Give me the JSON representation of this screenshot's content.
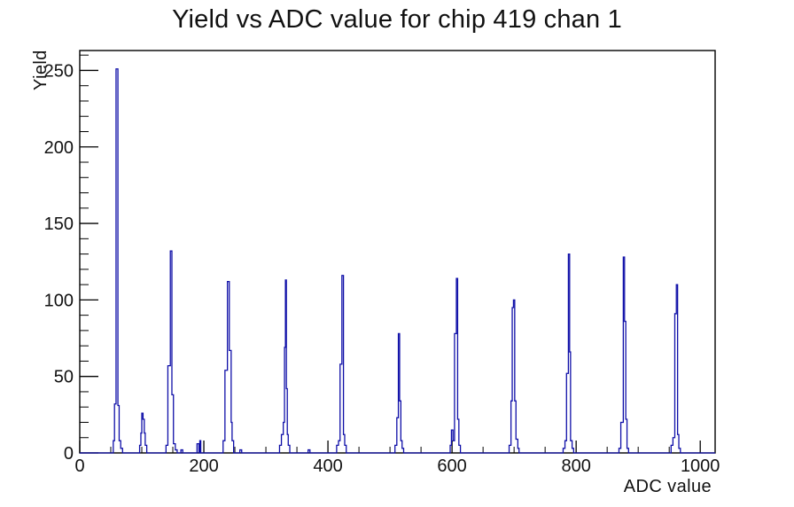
{
  "window": {
    "background_color": "#ffffff"
  },
  "chart_data": {
    "type": "bar",
    "subtype": "histogram-step-outline",
    "title": "Yield vs ADC value for chip 419 chan 1",
    "xlabel": "ADC value",
    "ylabel": "Yield",
    "legend": "none",
    "grid": "off",
    "colors": {
      "histogram_line": "#0f0fa8",
      "frame_line": "#000000",
      "text": "#111111",
      "background": "#ffffff"
    },
    "xaxis": {
      "title": "ADC value",
      "range": [
        0,
        1024
      ],
      "major_ticks": [
        0,
        200,
        400,
        600,
        800,
        1000
      ],
      "major_tick_labels": [
        "0",
        "200",
        "400",
        "600",
        "800",
        "1000"
      ],
      "minor_tick_step": 50
    },
    "yaxis": {
      "title": "Yield",
      "range": [
        0,
        263
      ],
      "major_ticks": [
        0,
        50,
        100,
        150,
        200,
        250
      ],
      "major_tick_labels": [
        "0",
        "50",
        "100",
        "150",
        "200",
        "250"
      ],
      "minor_tick_step": 10
    },
    "peaks_summary": [
      {
        "adc": 61,
        "yield": 251
      },
      {
        "adc": 101,
        "yield": 26
      },
      {
        "adc": 147,
        "yield": 132
      },
      {
        "adc": 240,
        "yield": 112
      },
      {
        "adc": 332,
        "yield": 113
      },
      {
        "adc": 424,
        "yield": 116
      },
      {
        "adc": 515,
        "yield": 78
      },
      {
        "adc": 608,
        "yield": 114
      },
      {
        "adc": 700,
        "yield": 100
      },
      {
        "adc": 788,
        "yield": 130
      },
      {
        "adc": 877,
        "yield": 128
      },
      {
        "adc": 962,
        "yield": 110
      }
    ],
    "bins": [
      [
        54,
        56,
        8
      ],
      [
        56,
        58.5,
        32
      ],
      [
        58.5,
        61.5,
        251
      ],
      [
        61.5,
        63.5,
        31
      ],
      [
        63.5,
        66,
        8
      ],
      [
        66,
        69,
        3
      ],
      [
        96.5,
        98.5,
        5
      ],
      [
        98.5,
        100,
        13
      ],
      [
        100,
        102,
        26
      ],
      [
        102,
        104,
        22
      ],
      [
        104,
        105.5,
        13
      ],
      [
        105.5,
        108,
        5
      ],
      [
        139,
        142,
        5
      ],
      [
        142,
        146,
        57
      ],
      [
        146,
        148.5,
        132
      ],
      [
        148.5,
        151,
        38
      ],
      [
        151,
        154,
        6
      ],
      [
        154,
        157,
        2
      ],
      [
        163,
        166,
        2
      ],
      [
        189,
        192,
        6
      ],
      [
        193.5,
        195,
        8
      ],
      [
        231,
        234,
        8
      ],
      [
        234,
        238,
        54
      ],
      [
        238,
        241,
        112
      ],
      [
        241,
        244,
        67
      ],
      [
        244,
        245.5,
        20
      ],
      [
        245.5,
        248,
        8
      ],
      [
        258,
        261,
        2
      ],
      [
        322,
        325,
        5
      ],
      [
        325,
        328,
        12
      ],
      [
        328,
        330,
        20
      ],
      [
        330,
        331.5,
        69
      ],
      [
        331.5,
        333,
        113
      ],
      [
        333,
        334.5,
        42
      ],
      [
        334.5,
        336,
        12
      ],
      [
        336,
        338.5,
        5
      ],
      [
        368,
        371,
        2
      ],
      [
        414,
        417,
        5
      ],
      [
        417,
        419.5,
        8
      ],
      [
        419.5,
        422.5,
        58
      ],
      [
        422.5,
        425,
        116
      ],
      [
        425,
        427,
        12
      ],
      [
        427,
        429.5,
        5
      ],
      [
        508,
        511,
        5
      ],
      [
        511,
        513.5,
        23
      ],
      [
        513.5,
        515.5,
        78
      ],
      [
        515.5,
        517.5,
        34
      ],
      [
        517.5,
        519.5,
        8
      ],
      [
        519.5,
        522,
        3
      ],
      [
        597,
        599,
        5
      ],
      [
        599,
        601.5,
        15
      ],
      [
        601.5,
        604,
        8
      ],
      [
        604,
        607,
        78
      ],
      [
        607,
        609,
        114
      ],
      [
        609,
        611,
        22
      ],
      [
        611,
        613.5,
        5
      ],
      [
        692,
        695,
        5
      ],
      [
        695,
        697,
        34
      ],
      [
        697,
        699,
        95
      ],
      [
        699,
        701,
        100
      ],
      [
        701,
        703,
        34
      ],
      [
        703,
        706,
        9
      ],
      [
        706,
        708,
        3
      ],
      [
        779,
        782,
        3
      ],
      [
        782,
        784.5,
        8
      ],
      [
        784.5,
        787.5,
        52
      ],
      [
        787.5,
        789.5,
        130
      ],
      [
        789.5,
        791,
        66
      ],
      [
        791,
        793.5,
        8
      ],
      [
        793.5,
        796,
        3
      ],
      [
        869,
        872,
        3
      ],
      [
        872,
        876,
        20
      ],
      [
        876,
        878,
        128
      ],
      [
        878,
        880,
        86
      ],
      [
        880,
        882,
        22
      ],
      [
        882,
        884.5,
        3
      ],
      [
        953,
        956,
        5
      ],
      [
        956,
        959,
        10
      ],
      [
        959,
        961.5,
        91
      ],
      [
        961.5,
        963.5,
        110
      ],
      [
        963.5,
        965.5,
        12
      ],
      [
        965.5,
        968,
        3
      ]
    ]
  }
}
